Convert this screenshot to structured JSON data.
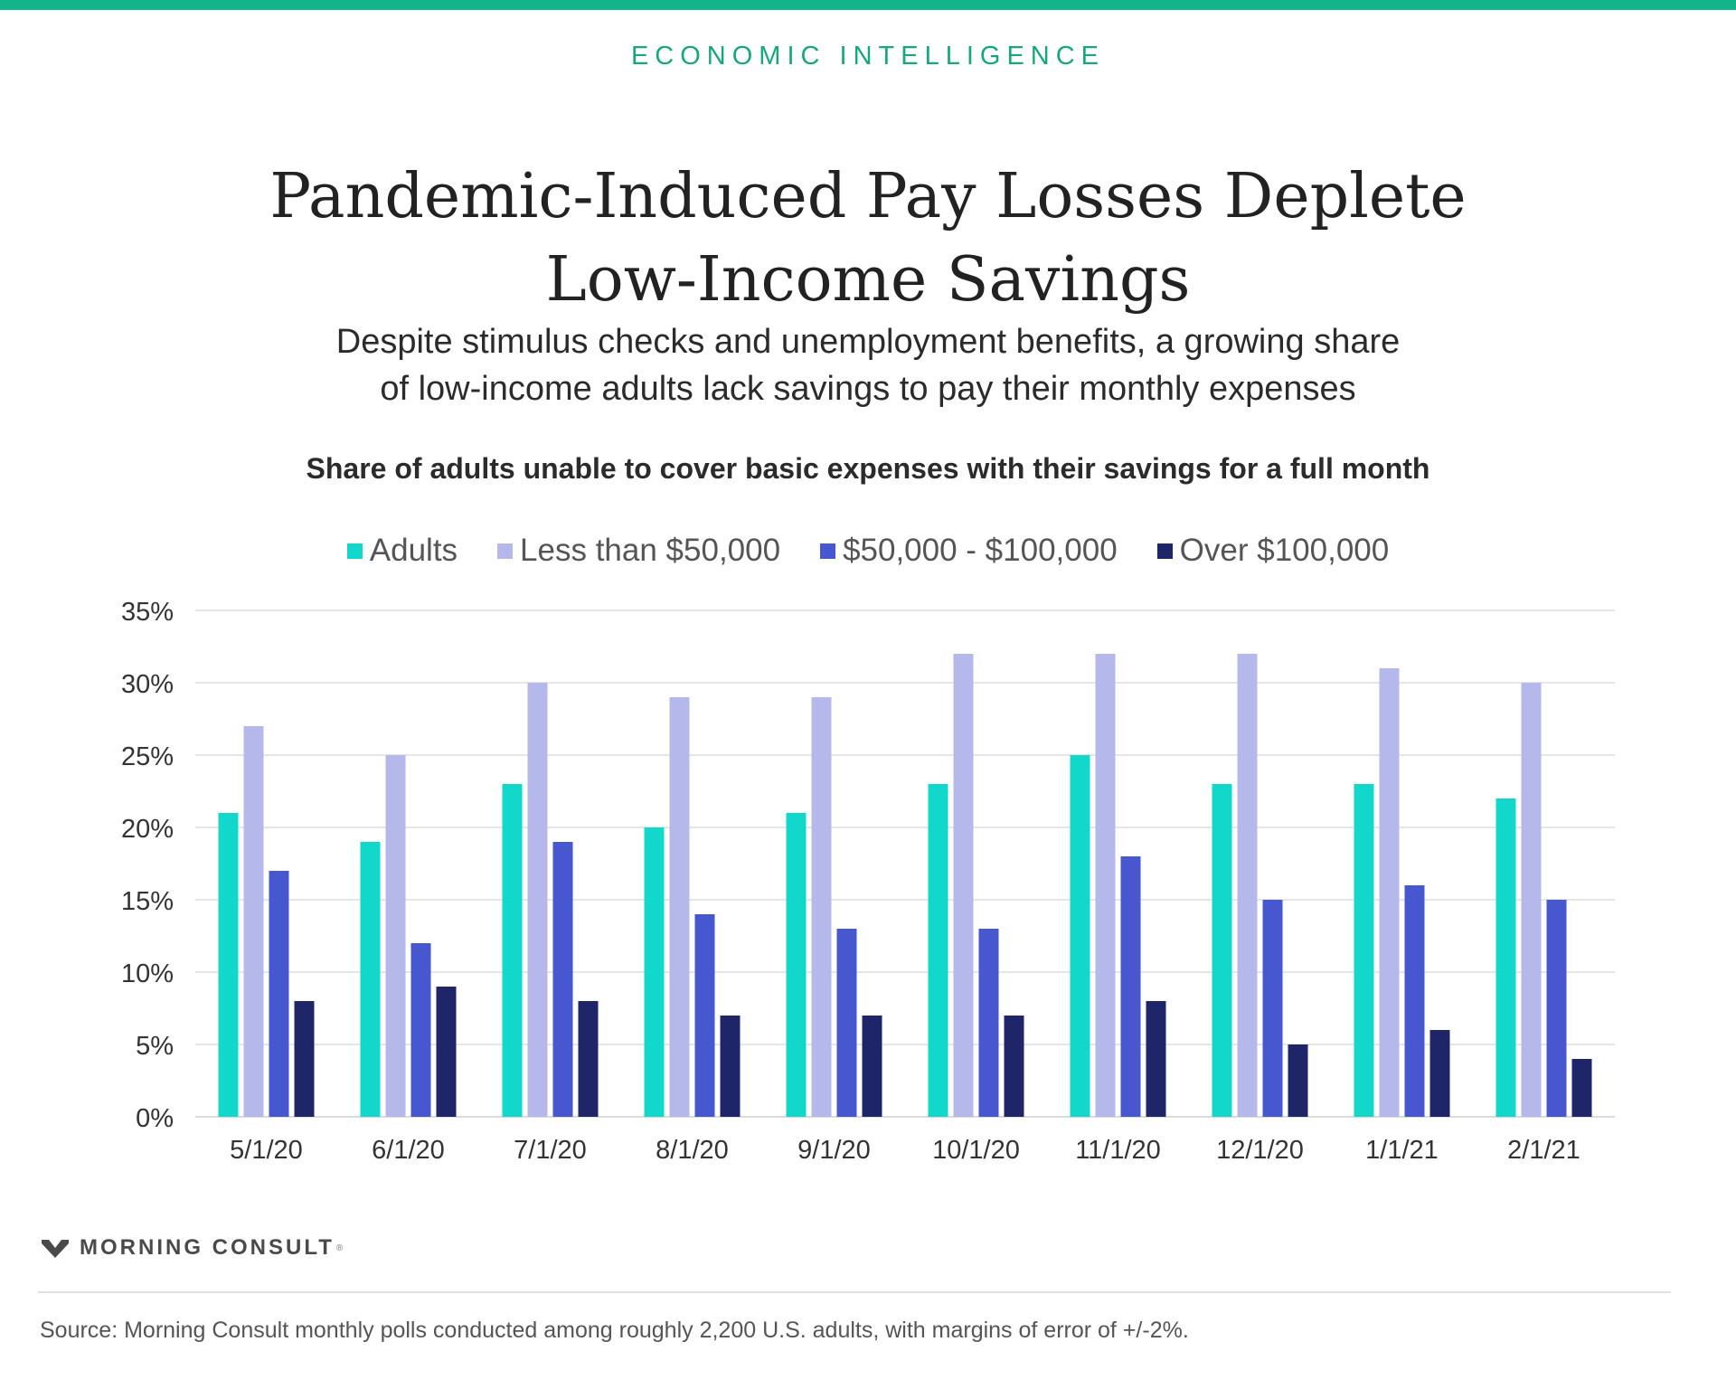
{
  "header": {
    "kicker": "ECONOMIC INTELLIGENCE",
    "title_line1": "Pandemic-Induced Pay Losses Deplete",
    "title_line2": "Low-Income Savings",
    "subtitle_line1": "Despite stimulus checks and unemployment benefits, a growing share",
    "subtitle_line2": "of low-income adults lack savings to pay their monthly expenses"
  },
  "footer": {
    "logo_text": "MORNING CONSULT",
    "logo_tm": "®",
    "source": "Source: Morning Consult monthly polls conducted among roughly 2,200 U.S. adults, with margins of error of +/-2%."
  },
  "colors": {
    "accent": "#12b48a",
    "gridline": "#dddddd",
    "axis_text": "#333333"
  },
  "chart_data": {
    "type": "bar",
    "title": "Share of adults unable to cover basic expenses with their savings for a full month",
    "categories": [
      "5/1/20",
      "6/1/20",
      "7/1/20",
      "8/1/20",
      "9/1/20",
      "10/1/20",
      "11/1/20",
      "12/1/20",
      "1/1/21",
      "2/1/21"
    ],
    "series": [
      {
        "name": "Adults",
        "color": "#12d8cb",
        "values": [
          21,
          19,
          23,
          20,
          21,
          23,
          25,
          23,
          23,
          22
        ]
      },
      {
        "name": "Less than $50,000",
        "color": "#b4b8ea",
        "values": [
          27,
          25,
          30,
          29,
          29,
          32,
          32,
          32,
          31,
          30
        ]
      },
      {
        "name": "$50,000 - $100,000",
        "color": "#4757d0",
        "values": [
          17,
          12,
          19,
          14,
          13,
          13,
          18,
          15,
          16,
          15
        ]
      },
      {
        "name": "Over $100,000",
        "color": "#1e2568",
        "values": [
          8,
          9,
          8,
          7,
          7,
          7,
          8,
          5,
          6,
          4
        ]
      }
    ],
    "ylim": [
      0,
      35
    ],
    "yticks": [
      0,
      5,
      10,
      15,
      20,
      25,
      30,
      35
    ],
    "ytick_labels": [
      "0%",
      "5%",
      "10%",
      "15%",
      "20%",
      "25%",
      "30%",
      "35%"
    ],
    "grid": true,
    "legend_position": "top-center"
  }
}
